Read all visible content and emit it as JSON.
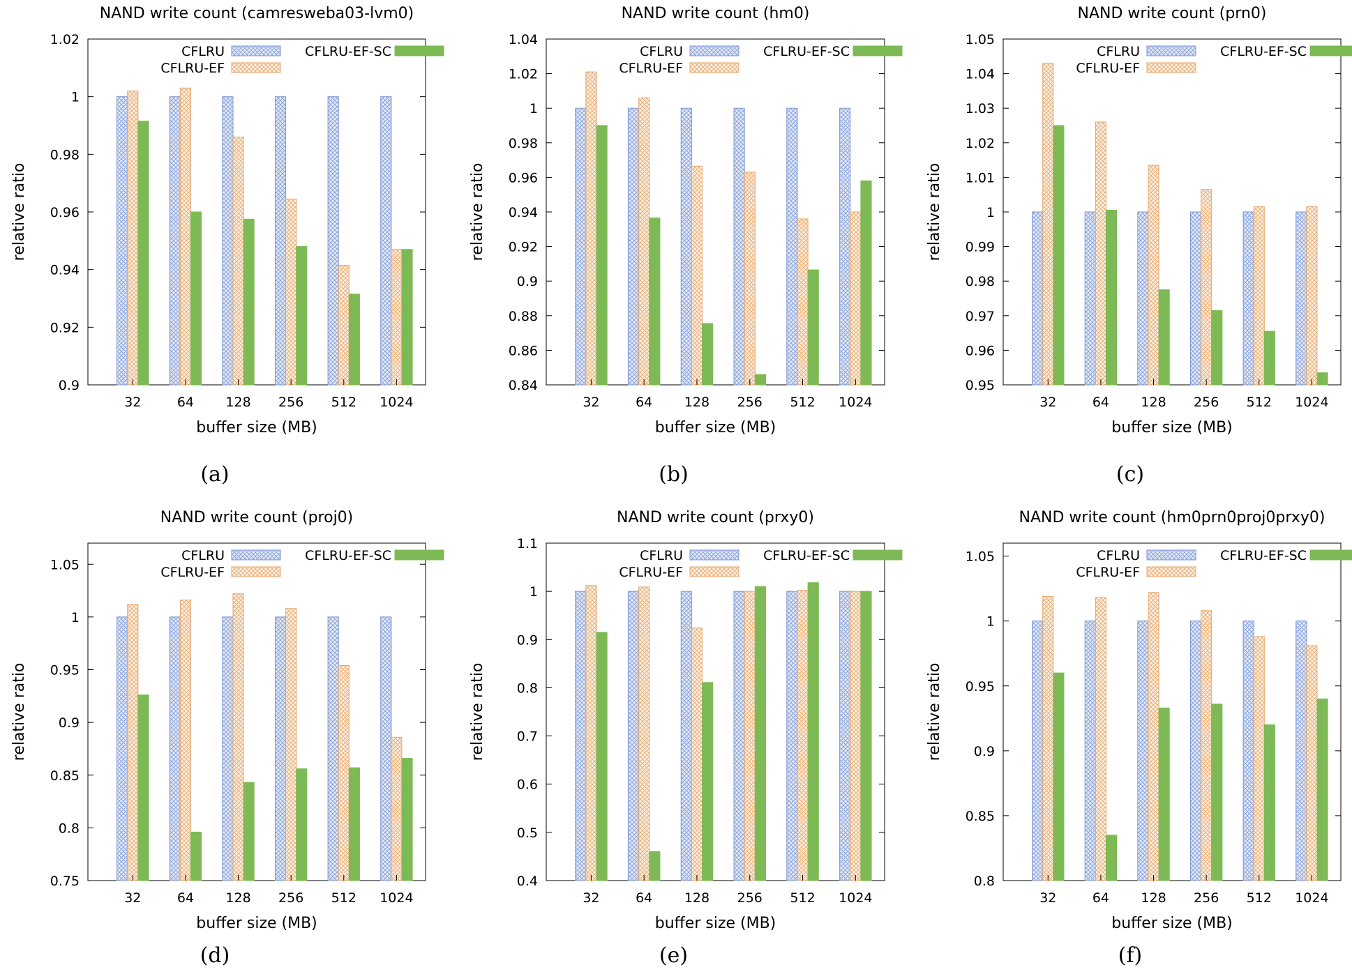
{
  "legend": {
    "series_names": [
      "CFLRU",
      "CFLRU-EF",
      "CFLRU-EF-SC"
    ]
  },
  "colors": {
    "cflru_line": "#7f96d6",
    "cflru_fill": "#e4ebf8",
    "cflru_ef_line": "#e3a86e",
    "cflru_ef_fill": "#fbebdc",
    "cflru_ef_sc": "#7dba55"
  },
  "chart_data": [
    {
      "type": "bar",
      "caption": "(a)",
      "title": "NAND write count (camresweba03-lvm0)",
      "xlabel": "buffer size (MB)",
      "ylabel": "relative ratio",
      "categories": [
        "32",
        "64",
        "128",
        "256",
        "512",
        "1024"
      ],
      "ylim": [
        0.9,
        1.02
      ],
      "yticks": [
        "0.9",
        "0.92",
        "0.94",
        "0.96",
        "0.98",
        "1",
        "1.02"
      ],
      "series": [
        {
          "name": "CFLRU",
          "values": [
            1.0,
            1.0,
            1.0,
            1.0,
            1.0,
            1.0
          ]
        },
        {
          "name": "CFLRU-EF",
          "values": [
            1.002,
            1.003,
            0.986,
            0.9645,
            0.9415,
            0.947
          ]
        },
        {
          "name": "CFLRU-EF-SC",
          "values": [
            0.9915,
            0.96,
            0.9575,
            0.948,
            0.9315,
            0.947
          ]
        }
      ]
    },
    {
      "type": "bar",
      "caption": "(b)",
      "title": "NAND write count (hm0)",
      "xlabel": "buffer size (MB)",
      "ylabel": "relative ratio",
      "categories": [
        "32",
        "64",
        "128",
        "256",
        "512",
        "1024"
      ],
      "ylim": [
        0.84,
        1.04
      ],
      "yticks": [
        "0.84",
        "0.86",
        "0.88",
        "0.9",
        "0.92",
        "0.94",
        "0.96",
        "0.98",
        "1",
        "1.02",
        "1.04"
      ],
      "series": [
        {
          "name": "CFLRU",
          "values": [
            1.0,
            1.0,
            1.0,
            1.0,
            1.0,
            1.0
          ]
        },
        {
          "name": "CFLRU-EF",
          "values": [
            1.021,
            1.006,
            0.9665,
            0.963,
            0.936,
            0.94
          ]
        },
        {
          "name": "CFLRU-EF-SC",
          "values": [
            0.99,
            0.9365,
            0.8755,
            0.846,
            0.9065,
            0.958
          ]
        }
      ]
    },
    {
      "type": "bar",
      "caption": "(c)",
      "title": "NAND write count (prn0)",
      "xlabel": "buffer size (MB)",
      "ylabel": "relative ratio",
      "categories": [
        "32",
        "64",
        "128",
        "256",
        "512",
        "1024"
      ],
      "ylim": [
        0.95,
        1.05
      ],
      "yticks": [
        "0.95",
        "0.96",
        "0.97",
        "0.98",
        "0.99",
        "1",
        "1.01",
        "1.02",
        "1.03",
        "1.04",
        "1.05"
      ],
      "series": [
        {
          "name": "CFLRU",
          "values": [
            1.0,
            1.0,
            1.0,
            1.0,
            1.0,
            1.0
          ]
        },
        {
          "name": "CFLRU-EF",
          "values": [
            1.043,
            1.026,
            1.0135,
            1.0065,
            1.0015,
            1.0015
          ]
        },
        {
          "name": "CFLRU-EF-SC",
          "values": [
            1.025,
            1.0005,
            0.9775,
            0.9715,
            0.9655,
            0.9535
          ]
        }
      ]
    },
    {
      "type": "bar",
      "caption": "(d)",
      "title": "NAND write count (proj0)",
      "xlabel": "buffer size (MB)",
      "ylabel": "relative ratio",
      "categories": [
        "32",
        "64",
        "128",
        "256",
        "512",
        "1024"
      ],
      "ylim": [
        0.75,
        1.07
      ],
      "yticks": [
        "0.75",
        "0.8",
        "0.85",
        "0.9",
        "0.95",
        "1",
        "1.05"
      ],
      "series": [
        {
          "name": "CFLRU",
          "values": [
            1.0,
            1.0,
            1.0,
            1.0,
            1.0,
            1.0
          ]
        },
        {
          "name": "CFLRU-EF",
          "values": [
            1.012,
            1.016,
            1.022,
            1.008,
            0.954,
            0.886
          ]
        },
        {
          "name": "CFLRU-EF-SC",
          "values": [
            0.926,
            0.796,
            0.843,
            0.856,
            0.857,
            0.866
          ]
        }
      ]
    },
    {
      "type": "bar",
      "caption": "(e)",
      "title": "NAND write count (prxy0)",
      "xlabel": "buffer size (MB)",
      "ylabel": "relative ratio",
      "categories": [
        "32",
        "64",
        "128",
        "256",
        "512",
        "1024"
      ],
      "ylim": [
        0.4,
        1.1
      ],
      "yticks": [
        "0.4",
        "0.5",
        "0.6",
        "0.7",
        "0.8",
        "0.9",
        "1",
        "1.1"
      ],
      "series": [
        {
          "name": "CFLRU",
          "values": [
            1.0,
            1.0,
            1.0,
            1.0,
            1.0,
            1.0
          ]
        },
        {
          "name": "CFLRU-EF",
          "values": [
            1.012,
            1.009,
            0.924,
            1.0,
            1.002,
            1.0
          ]
        },
        {
          "name": "CFLRU-EF-SC",
          "values": [
            0.915,
            0.46,
            0.811,
            1.01,
            1.018,
            1.0
          ]
        }
      ]
    },
    {
      "type": "bar",
      "caption": "(f)",
      "title": "NAND write count (hm0prn0proj0prxy0)",
      "xlabel": "buffer size (MB)",
      "ylabel": "relative ratio",
      "categories": [
        "32",
        "64",
        "128",
        "256",
        "512",
        "1024"
      ],
      "ylim": [
        0.8,
        1.06
      ],
      "yticks": [
        "0.8",
        "0.85",
        "0.9",
        "0.95",
        "1",
        "1.05"
      ],
      "series": [
        {
          "name": "CFLRU",
          "values": [
            1.0,
            1.0,
            1.0,
            1.0,
            1.0,
            1.0
          ]
        },
        {
          "name": "CFLRU-EF",
          "values": [
            1.019,
            1.018,
            1.022,
            1.008,
            0.988,
            0.981
          ]
        },
        {
          "name": "CFLRU-EF-SC",
          "values": [
            0.96,
            0.835,
            0.933,
            0.936,
            0.92,
            0.94
          ]
        }
      ]
    }
  ]
}
